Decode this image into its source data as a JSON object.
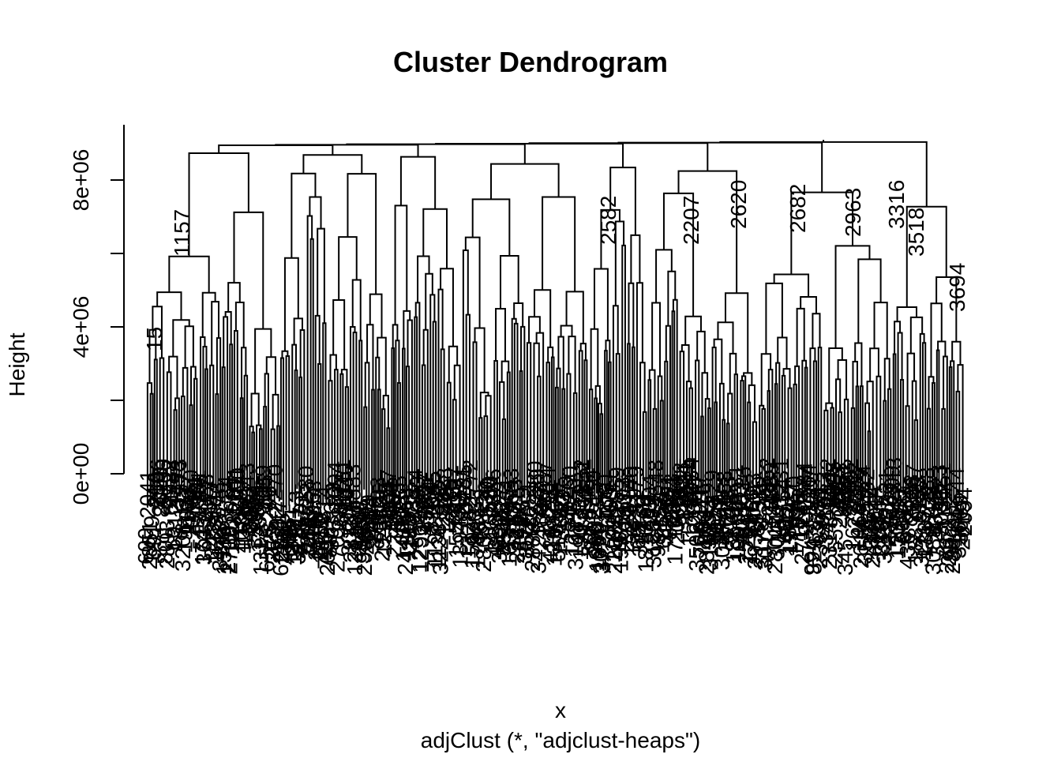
{
  "chart_data": {
    "type": "dendrogram",
    "title": "Cluster Dendrogram",
    "xlabel": "x",
    "subtitle": "adjClust (*, \"adjclust-heaps\")",
    "ylabel": "Height",
    "ylim": [
      0,
      9000000
    ],
    "yticks": [
      0,
      2000000,
      4000000,
      6000000,
      8000000
    ],
    "ytick_labels": [
      "0e+00",
      "",
      "4e+06",
      "",
      "8e+06"
    ],
    "root_height": 9050000,
    "top_merge_heights": [
      9000000,
      8950000,
      8900000,
      8700000,
      8600000,
      8500000,
      7900000,
      7500000
    ],
    "visible_leaf_labels": [
      "15",
      "3694",
      "3518",
      "1157",
      "702",
      "1907",
      "2582",
      "2207",
      "2620",
      "2682",
      "2963",
      "3316"
    ]
  }
}
